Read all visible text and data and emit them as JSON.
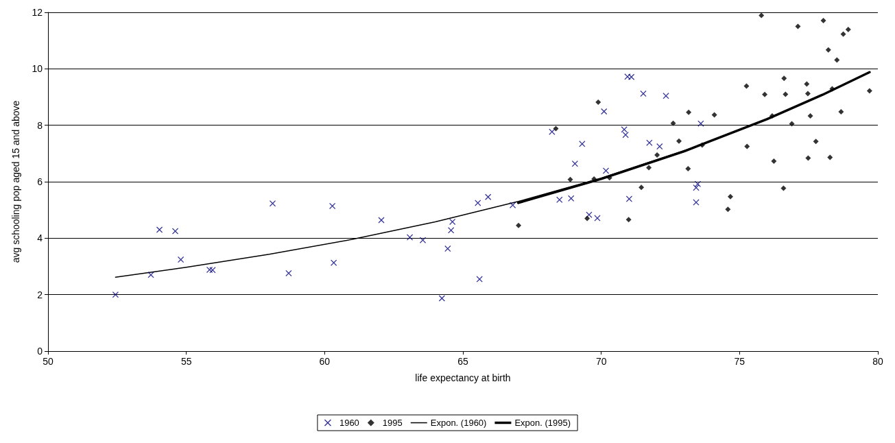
{
  "chart_data": {
    "type": "scatter",
    "xlabel": "life expectancy at birth",
    "ylabel": "avg schooling pop aged 15 and above",
    "xlim": [
      50,
      80
    ],
    "xticks": [
      50,
      55,
      60,
      65,
      70,
      75,
      80
    ],
    "ylim": [
      0,
      12
    ],
    "yticks": [
      0,
      2,
      4,
      6,
      8,
      10,
      12
    ],
    "grid": "y",
    "legend": "bottom",
    "series": [
      {
        "name": "1960",
        "marker": "cross",
        "color": "#000080",
        "x": [
          52.44,
          53.72,
          54.03,
          54.6,
          54.8,
          55.84,
          55.95,
          58.12,
          58.7,
          60.28,
          60.33,
          62.05,
          63.08,
          63.55,
          64.24,
          64.45,
          64.57,
          64.62,
          65.54,
          65.6,
          65.91,
          66.8,
          68.22,
          68.49,
          68.91,
          69.05,
          69.31,
          69.56,
          69.86,
          70.1,
          70.17,
          70.83,
          70.88,
          70.95,
          71.09,
          71.01,
          71.52,
          71.74,
          72.11,
          72.34,
          73.43,
          73.43,
          73.49,
          73.6
        ],
        "values": [
          2.0,
          2.7,
          4.3,
          4.25,
          3.24,
          2.88,
          2.87,
          5.23,
          2.76,
          5.14,
          3.13,
          4.64,
          4.03,
          3.93,
          1.87,
          3.63,
          4.28,
          4.58,
          5.25,
          2.55,
          5.46,
          5.17,
          7.77,
          5.36,
          5.41,
          6.64,
          7.34,
          4.83,
          4.71,
          8.49,
          6.39,
          7.85,
          7.66,
          9.72,
          9.71,
          5.39,
          9.12,
          7.38,
          7.25,
          9.04,
          5.27,
          5.79,
          5.92,
          8.06
        ]
      },
      {
        "name": "1995",
        "marker": "diamond",
        "color": "#000000",
        "x": [
          67.01,
          68.36,
          68.88,
          69.74,
          69.89,
          70.3,
          69.49,
          70.99,
          71.45,
          71.72,
          72.02,
          72.6,
          72.81,
          73.16,
          73.14,
          73.65,
          74.09,
          74.67,
          74.58,
          75.79,
          77.11,
          78.03,
          78.75,
          78.93,
          78.21,
          78.52,
          75.25,
          75.91,
          76.61,
          76.66,
          77.43,
          77.47,
          78.35,
          79.7,
          76.18,
          77.56,
          78.67,
          76.89,
          75.27,
          77.76,
          76.24,
          77.48,
          78.27,
          76.59
        ],
        "values": [
          4.45,
          7.88,
          6.08,
          6.1,
          8.82,
          6.14,
          4.7,
          4.66,
          5.8,
          6.5,
          6.95,
          8.07,
          7.44,
          8.46,
          6.46,
          7.3,
          8.37,
          5.47,
          5.02,
          11.89,
          11.5,
          11.71,
          11.23,
          11.39,
          10.67,
          10.31,
          9.39,
          9.09,
          9.66,
          9.1,
          9.46,
          9.12,
          9.29,
          9.22,
          8.33,
          8.33,
          8.48,
          8.05,
          7.25,
          7.43,
          6.73,
          6.84,
          6.86,
          5.77
        ]
      },
      {
        "name": "Expon. (1960)",
        "type": "line",
        "marker": "none",
        "line_style": "solid",
        "color": "#000000",
        "x": [
          52.44,
          55,
          58,
          61,
          64,
          67,
          70,
          73.6
        ],
        "values": [
          2.62,
          2.97,
          3.43,
          3.96,
          4.58,
          5.3,
          6.13,
          7.3
        ]
      },
      {
        "name": "Expon. (1995)",
        "type": "line",
        "marker": "none",
        "line_style": "solid",
        "color": "#000000",
        "x": [
          67,
          70,
          73,
          76,
          78,
          79.7
        ],
        "values": [
          5.25,
          6.1,
          7.08,
          8.22,
          9.08,
          9.88
        ]
      }
    ]
  }
}
